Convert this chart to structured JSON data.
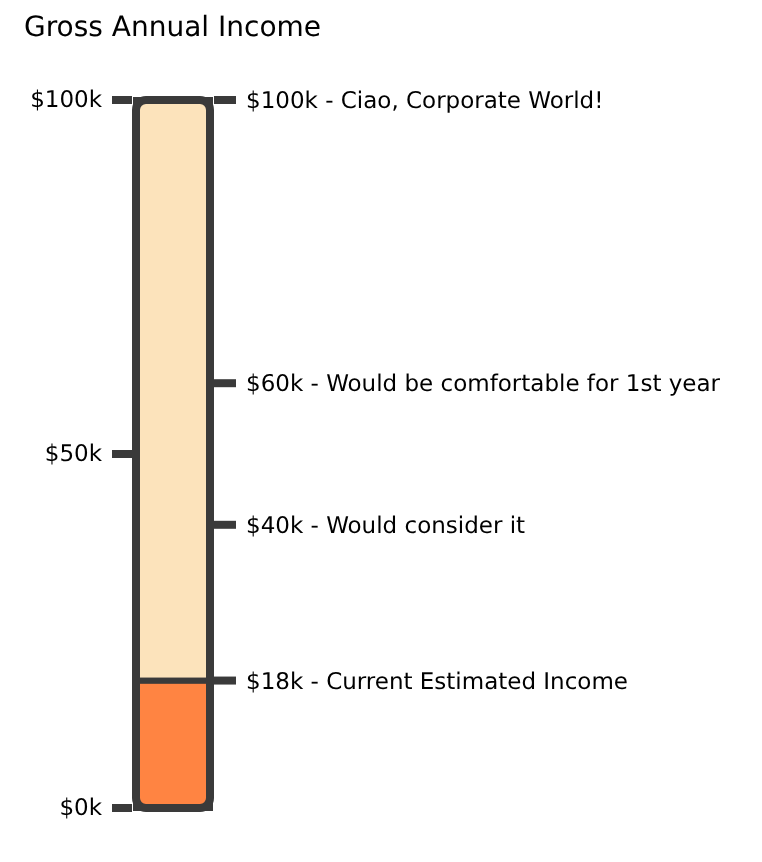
{
  "chart_data": {
    "type": "bar",
    "title": "Gross Annual Income",
    "categories": [
      null
    ],
    "stacked": true,
    "series": [
      {
        "color": "#ff8442",
        "values": [
          18
        ]
      },
      {
        "color": "#fce3bb",
        "values": [
          82
        ]
      }
    ],
    "ylim": [
      0,
      100
    ],
    "yticks": [
      {
        "value": 0,
        "label": "$0k"
      },
      {
        "value": 50,
        "label": "$50k"
      },
      {
        "value": 100,
        "label": "$100k"
      }
    ],
    "ref_lines": [
      {
        "axis": "y",
        "value": 100,
        "label": "$100k - Ciao, Corporate World!"
      },
      {
        "axis": "y",
        "value": 60,
        "label": "$60k - Would be comfortable for 1st year"
      },
      {
        "axis": "y",
        "value": 40,
        "label": "$40k - Would consider it"
      },
      {
        "axis": "y",
        "value": 18,
        "label": "$18k - Current Estimated Income"
      }
    ]
  }
}
